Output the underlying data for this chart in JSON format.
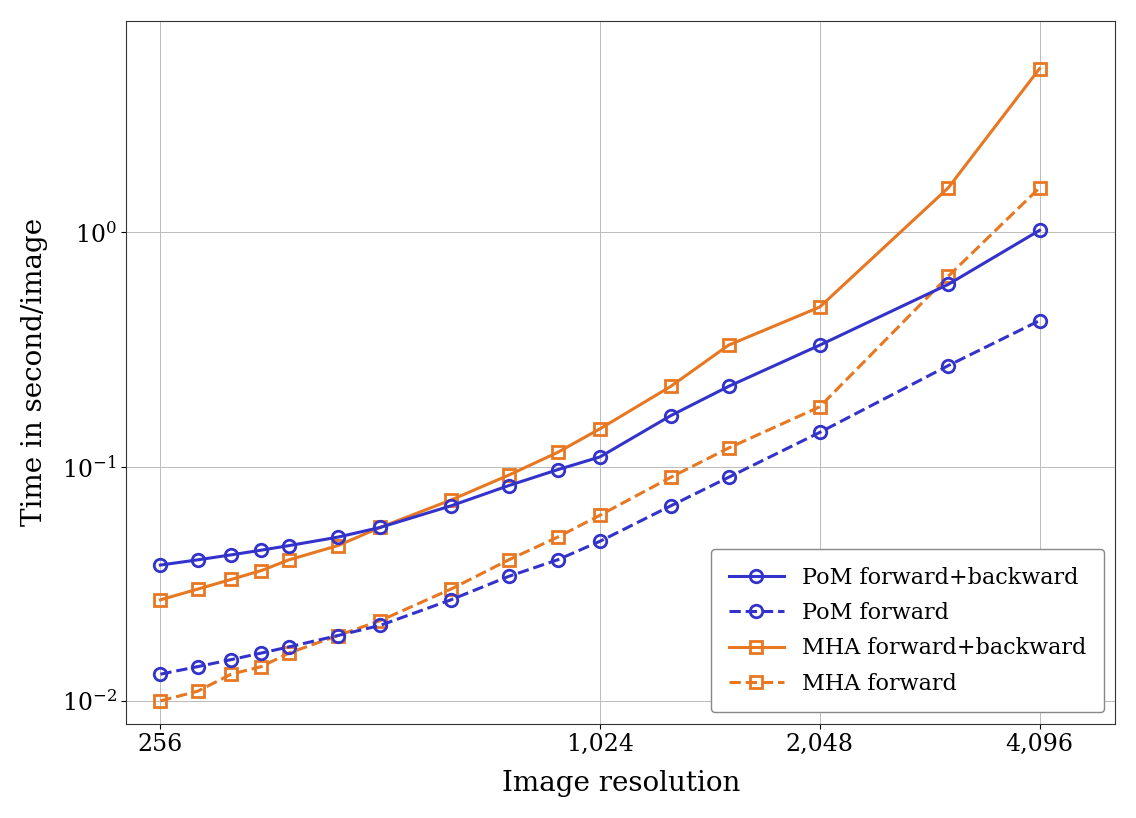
{
  "xlabel": "Image resolution",
  "ylabel": "Time in second/image",
  "background_color": "#ffffff",
  "pom_fb_x": [
    256,
    288,
    320,
    352,
    384,
    448,
    512,
    640,
    768,
    896,
    1024,
    1280,
    1536,
    2048,
    3072,
    4096
  ],
  "pom_fb_y": [
    0.038,
    0.04,
    0.042,
    0.044,
    0.046,
    0.05,
    0.055,
    0.068,
    0.083,
    0.097,
    0.11,
    0.165,
    0.22,
    0.33,
    0.6,
    1.02
  ],
  "pom_fwd_x": [
    256,
    288,
    320,
    352,
    384,
    448,
    512,
    640,
    768,
    896,
    1024,
    1280,
    1536,
    2048,
    3072,
    4096
  ],
  "pom_fwd_y": [
    0.013,
    0.014,
    0.015,
    0.016,
    0.017,
    0.019,
    0.021,
    0.027,
    0.034,
    0.04,
    0.048,
    0.068,
    0.09,
    0.14,
    0.27,
    0.42
  ],
  "mha_fb_x": [
    256,
    288,
    320,
    352,
    384,
    448,
    512,
    640,
    768,
    896,
    1024,
    1280,
    1536,
    2048,
    3072,
    4096
  ],
  "mha_fb_y": [
    0.027,
    0.03,
    0.033,
    0.036,
    0.04,
    0.046,
    0.055,
    0.072,
    0.092,
    0.115,
    0.145,
    0.22,
    0.33,
    0.48,
    1.55,
    5.0
  ],
  "mha_fwd_x": [
    256,
    288,
    320,
    352,
    384,
    448,
    512,
    640,
    768,
    896,
    1024,
    1280,
    1536,
    2048,
    3072,
    4096
  ],
  "mha_fwd_y": [
    0.01,
    0.011,
    0.013,
    0.014,
    0.016,
    0.019,
    0.022,
    0.03,
    0.04,
    0.05,
    0.062,
    0.09,
    0.12,
    0.18,
    0.65,
    1.55
  ],
  "pom_color": "#3333cc",
  "mha_color": "#e87722",
  "ylim": [
    0.008,
    8.0
  ],
  "xlim": [
    230,
    5200
  ],
  "xticks": [
    256,
    1024,
    2048,
    4096
  ],
  "xtick_labels": [
    "256",
    "1,024",
    "2,048",
    "4,096"
  ],
  "yticks": [
    0.01,
    0.1,
    1.0
  ],
  "ytick_labels": [
    "$10^{-2}$",
    "$10^{-1}$",
    "$10^{0}$"
  ],
  "legend_loc": "lower right",
  "fontsize_labels": 20,
  "fontsize_ticks": 17,
  "fontsize_legend": 16
}
